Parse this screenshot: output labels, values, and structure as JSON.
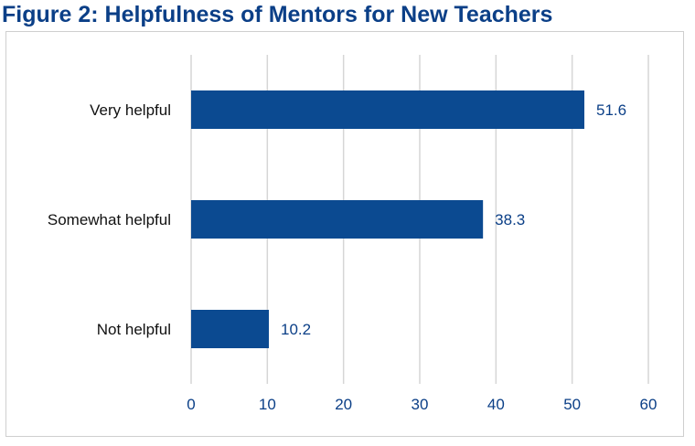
{
  "chart_data": {
    "type": "bar",
    "orientation": "horizontal",
    "title": "Figure 2: Helpfulness of Mentors for New Teachers",
    "categories": [
      "Very helpful",
      "Somewhat helpful",
      "Not helpful"
    ],
    "values": [
      51.6,
      38.3,
      10.2
    ],
    "data_labels": [
      "51.6",
      "38.3",
      "10.2"
    ],
    "xlim": [
      0,
      60
    ],
    "x_ticks": [
      0,
      10,
      20,
      30,
      40,
      50,
      60
    ],
    "x_tick_labels": [
      "0",
      "10",
      "20",
      "30",
      "40",
      "50",
      "60"
    ],
    "xlabel": "",
    "ylabel": "",
    "grid": "vertical",
    "bar_color": "#0b4a91",
    "grid_color": "#d6d6d6"
  }
}
